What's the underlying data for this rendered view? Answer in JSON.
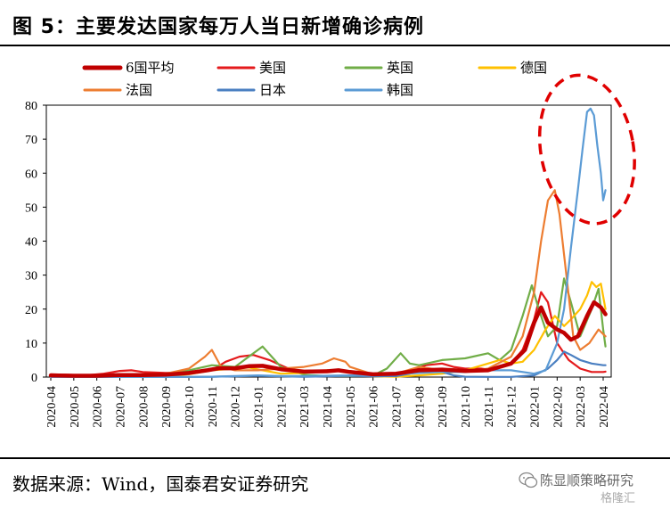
{
  "title": "图 5：主要发达国家每万人当日新增确诊病例",
  "source": "数据来源：Wind，国泰君安证券研究",
  "watermark": {
    "name": "陈显顺策略研究",
    "mark": "格隆汇",
    "icon": "wechat-bubble-icon"
  },
  "chart_data": {
    "type": "line",
    "title": "",
    "xlabel": "",
    "ylabel": "",
    "ylim": [
      0,
      80
    ],
    "yticks": [
      0,
      10,
      20,
      30,
      40,
      50,
      60,
      70,
      80
    ],
    "grid": false,
    "legend_position": "top",
    "x_tick_labels": [
      "2020-04",
      "2020-05",
      "2020-06",
      "2020-07",
      "2020-08",
      "2020-09",
      "2020-10",
      "2020-11",
      "2020-12",
      "2021-01",
      "2021-02",
      "2021-03",
      "2021-04",
      "2021-05",
      "2021-06",
      "2021-07",
      "2021-08",
      "2021-09",
      "2021-10",
      "2021-11",
      "2021-12",
      "2022-01",
      "2022-02",
      "2022-03",
      "2022-04"
    ],
    "annotation": "red-dashed-ellipse-highlighting-korea-peak",
    "series": [
      {
        "name": "6国平均",
        "color": "#c00000",
        "bold": true,
        "points": [
          [
            0,
            0.5
          ],
          [
            1,
            0.4
          ],
          [
            2,
            0.4
          ],
          [
            3,
            0.6
          ],
          [
            4,
            0.6
          ],
          [
            5,
            0.7
          ],
          [
            6,
            1.2
          ],
          [
            6.8,
            2.0
          ],
          [
            7.3,
            2.6
          ],
          [
            8,
            2.6
          ],
          [
            8.6,
            3.2
          ],
          [
            9.2,
            3.3
          ],
          [
            10,
            2.3
          ],
          [
            11,
            1.6
          ],
          [
            12,
            1.7
          ],
          [
            12.5,
            2.0
          ],
          [
            13,
            1.5
          ],
          [
            14,
            0.8
          ],
          [
            15,
            1.0
          ],
          [
            16,
            2.0
          ],
          [
            17,
            2.2
          ],
          [
            18,
            1.8
          ],
          [
            19,
            2.0
          ],
          [
            20,
            4.0
          ],
          [
            20.6,
            8.0
          ],
          [
            21,
            16.0
          ],
          [
            21.3,
            20.5
          ],
          [
            21.6,
            16.0
          ],
          [
            22,
            14.0
          ],
          [
            22.3,
            13.0
          ],
          [
            22.6,
            11.0
          ],
          [
            22.9,
            12.0
          ],
          [
            23.3,
            18.0
          ],
          [
            23.6,
            22.0
          ],
          [
            23.9,
            20.5
          ],
          [
            24.1,
            18.5
          ]
        ]
      },
      {
        "name": "美国",
        "color": "#e41a1c",
        "points": [
          [
            0,
            0.8
          ],
          [
            0.7,
            0.7
          ],
          [
            1.5,
            0.5
          ],
          [
            2.3,
            1.0
          ],
          [
            3,
            1.8
          ],
          [
            3.5,
            2.0
          ],
          [
            4,
            1.5
          ],
          [
            5,
            1.2
          ],
          [
            6,
            1.5
          ],
          [
            7,
            2.0
          ],
          [
            7.6,
            4.5
          ],
          [
            8.2,
            6.0
          ],
          [
            8.8,
            6.5
          ],
          [
            9.5,
            5.0
          ],
          [
            10,
            3.5
          ],
          [
            10.5,
            2.0
          ],
          [
            11,
            1.8
          ],
          [
            12,
            2.0
          ],
          [
            13,
            1.5
          ],
          [
            14,
            0.5
          ],
          [
            14.8,
            0.5
          ],
          [
            15.5,
            1.5
          ],
          [
            16.3,
            3.5
          ],
          [
            17,
            4.0
          ],
          [
            17.5,
            3.0
          ],
          [
            18,
            2.5
          ],
          [
            18.7,
            2.5
          ],
          [
            19,
            2.2
          ],
          [
            20,
            4.0
          ],
          [
            20.5,
            8.0
          ],
          [
            21,
            17.0
          ],
          [
            21.3,
            25.0
          ],
          [
            21.6,
            22.0
          ],
          [
            22,
            10.0
          ],
          [
            22.5,
            5.0
          ],
          [
            23,
            2.5
          ],
          [
            23.5,
            1.5
          ],
          [
            24,
            1.5
          ],
          [
            24.1,
            1.6
          ]
        ]
      },
      {
        "name": "英国",
        "color": "#70ad47",
        "points": [
          [
            0,
            0.5
          ],
          [
            1,
            0.3
          ],
          [
            2,
            0.2
          ],
          [
            3,
            0.1
          ],
          [
            4,
            0.2
          ],
          [
            5,
            0.5
          ],
          [
            6,
            2.0
          ],
          [
            7,
            3.5
          ],
          [
            8,
            3.0
          ],
          [
            8.6,
            6.0
          ],
          [
            9.2,
            9.0
          ],
          [
            9.6,
            6.0
          ],
          [
            10,
            3.0
          ],
          [
            11,
            0.7
          ],
          [
            12,
            0.3
          ],
          [
            13,
            0.3
          ],
          [
            14,
            0.5
          ],
          [
            14.6,
            2.5
          ],
          [
            15.2,
            7.0
          ],
          [
            15.6,
            4.0
          ],
          [
            16,
            3.5
          ],
          [
            17,
            5.0
          ],
          [
            18,
            5.5
          ],
          [
            19,
            7.0
          ],
          [
            19.5,
            5.0
          ],
          [
            20,
            8.0
          ],
          [
            20.5,
            18.0
          ],
          [
            20.9,
            27.0
          ],
          [
            21.2,
            20.0
          ],
          [
            21.6,
            12.0
          ],
          [
            22,
            15.0
          ],
          [
            22.3,
            29.0
          ],
          [
            22.6,
            22.0
          ],
          [
            23,
            12.0
          ],
          [
            23.5,
            20.0
          ],
          [
            23.8,
            26.0
          ],
          [
            24,
            14.0
          ],
          [
            24.1,
            9.0
          ]
        ]
      },
      {
        "name": "德国",
        "color": "#ffc000",
        "points": [
          [
            0,
            0.3
          ],
          [
            1,
            0.1
          ],
          [
            2,
            0.05
          ],
          [
            3,
            0.05
          ],
          [
            4,
            0.1
          ],
          [
            5,
            0.2
          ],
          [
            6,
            0.8
          ],
          [
            7,
            2.0
          ],
          [
            8,
            2.5
          ],
          [
            8.6,
            2.8
          ],
          [
            9.2,
            2.0
          ],
          [
            10,
            1.0
          ],
          [
            11,
            1.2
          ],
          [
            12,
            2.0
          ],
          [
            13,
            1.5
          ],
          [
            14,
            0.2
          ],
          [
            15,
            0.1
          ],
          [
            16,
            0.5
          ],
          [
            17,
            1.0
          ],
          [
            18,
            2.0
          ],
          [
            19,
            4.0
          ],
          [
            19.5,
            5.0
          ],
          [
            20,
            4.0
          ],
          [
            20.5,
            4.5
          ],
          [
            21,
            8.0
          ],
          [
            21.5,
            14.0
          ],
          [
            21.9,
            18.0
          ],
          [
            22.3,
            15.0
          ],
          [
            22.6,
            17.0
          ],
          [
            23,
            20.0
          ],
          [
            23.3,
            24.0
          ],
          [
            23.5,
            28.0
          ],
          [
            23.7,
            26.5
          ],
          [
            23.9,
            27.5
          ],
          [
            24.1,
            20.0
          ]
        ]
      },
      {
        "name": "法国",
        "color": "#ed7d31",
        "points": [
          [
            0,
            0.5
          ],
          [
            1,
            0.2
          ],
          [
            2,
            0.1
          ],
          [
            3,
            0.1
          ],
          [
            4,
            0.3
          ],
          [
            5,
            1.0
          ],
          [
            6,
            2.5
          ],
          [
            6.7,
            6.0
          ],
          [
            7,
            8.0
          ],
          [
            7.4,
            3.0
          ],
          [
            8,
            2.0
          ],
          [
            9,
            2.0
          ],
          [
            10,
            2.5
          ],
          [
            11,
            3.0
          ],
          [
            11.8,
            4.0
          ],
          [
            12.3,
            5.5
          ],
          [
            12.8,
            4.5
          ],
          [
            13,
            3.0
          ],
          [
            14,
            0.8
          ],
          [
            15,
            1.0
          ],
          [
            16,
            3.0
          ],
          [
            17,
            2.0
          ],
          [
            18,
            1.5
          ],
          [
            19,
            2.5
          ],
          [
            20,
            6.0
          ],
          [
            20.5,
            12.0
          ],
          [
            21,
            25.0
          ],
          [
            21.3,
            40.0
          ],
          [
            21.6,
            52.0
          ],
          [
            21.9,
            55.0
          ],
          [
            22.1,
            48.0
          ],
          [
            22.4,
            30.0
          ],
          [
            22.7,
            12.0
          ],
          [
            23,
            8.0
          ],
          [
            23.4,
            10.0
          ],
          [
            23.8,
            14.0
          ],
          [
            24.1,
            12.0
          ]
        ]
      },
      {
        "name": "日本",
        "color": "#4a7fc1",
        "points": [
          [
            0,
            0.05
          ],
          [
            4,
            0.05
          ],
          [
            5,
            0.05
          ],
          [
            6,
            0.05
          ],
          [
            7,
            0.1
          ],
          [
            8,
            0.2
          ],
          [
            9,
            0.4
          ],
          [
            10,
            0.2
          ],
          [
            11,
            0.1
          ],
          [
            12,
            0.2
          ],
          [
            13,
            0.4
          ],
          [
            14,
            0.2
          ],
          [
            15,
            0.3
          ],
          [
            16,
            1.5
          ],
          [
            16.8,
            2.0
          ],
          [
            17.5,
            0.5
          ],
          [
            18,
            0.1
          ],
          [
            19,
            0.05
          ],
          [
            20,
            0.05
          ],
          [
            21,
            0.5
          ],
          [
            21.6,
            2.5
          ],
          [
            22,
            5.0
          ],
          [
            22.3,
            7.5
          ],
          [
            22.6,
            6.5
          ],
          [
            23,
            5.0
          ],
          [
            23.5,
            4.0
          ],
          [
            24,
            3.5
          ],
          [
            24.1,
            3.5
          ]
        ]
      },
      {
        "name": "韩国",
        "color": "#5b9bd5",
        "points": [
          [
            0,
            0.05
          ],
          [
            5,
            0.05
          ],
          [
            6,
            0.05
          ],
          [
            7,
            0.1
          ],
          [
            8,
            0.3
          ],
          [
            9,
            0.5
          ],
          [
            10,
            0.3
          ],
          [
            11,
            0.3
          ],
          [
            12,
            0.4
          ],
          [
            13,
            0.5
          ],
          [
            14,
            0.5
          ],
          [
            15,
            0.8
          ],
          [
            16,
            1.2
          ],
          [
            17,
            1.5
          ],
          [
            18,
            1.5
          ],
          [
            19,
            2.0
          ],
          [
            20,
            2.0
          ],
          [
            21,
            1.0
          ],
          [
            21.5,
            2.0
          ],
          [
            22,
            10.0
          ],
          [
            22.3,
            20.0
          ],
          [
            22.6,
            38.0
          ],
          [
            22.9,
            55.0
          ],
          [
            23.1,
            67.0
          ],
          [
            23.3,
            78.0
          ],
          [
            23.45,
            79.0
          ],
          [
            23.6,
            77.0
          ],
          [
            23.75,
            68.0
          ],
          [
            23.9,
            60.0
          ],
          [
            24,
            52.0
          ],
          [
            24.1,
            55.0
          ]
        ]
      }
    ]
  }
}
